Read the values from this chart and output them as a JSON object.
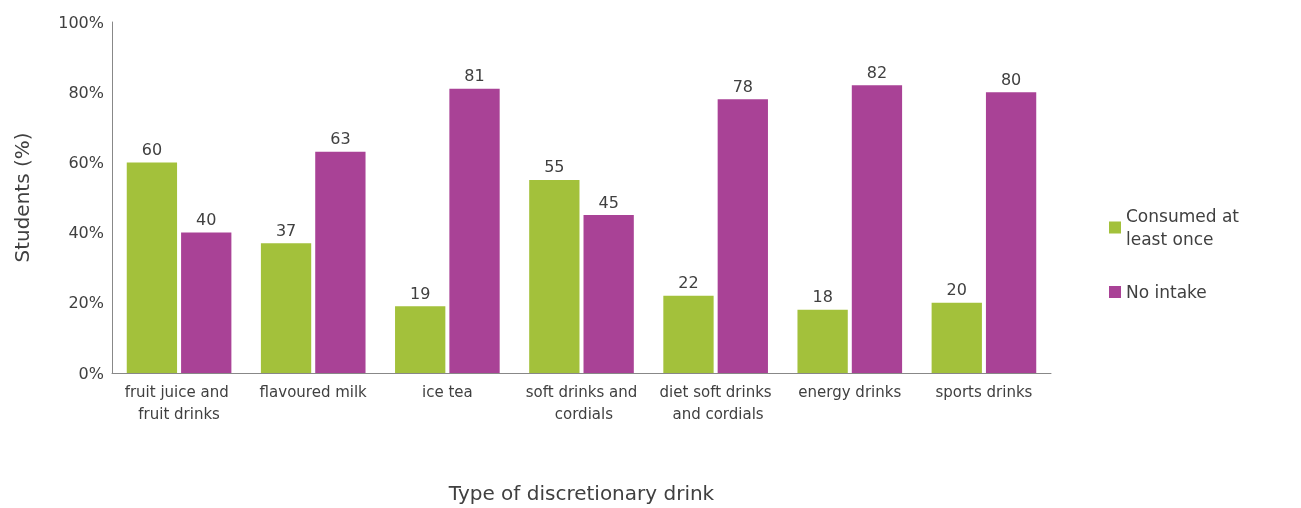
{
  "chart_data": {
    "type": "bar",
    "xlabel": "Type of discretionary drink",
    "ylabel": "Students (%)",
    "categories": [
      "fruit juice and fruit drinks",
      "flavoured milk",
      "ice tea",
      "soft drinks and cordials",
      "diet soft drinks and cordials",
      "energy drinks",
      "sports drinks"
    ],
    "series": [
      {
        "name": "Consumed at least once",
        "color": "#a3c13b",
        "values": [
          60,
          37,
          19,
          55,
          22,
          18,
          20
        ]
      },
      {
        "name": "No intake",
        "color": "#a94296",
        "values": [
          40,
          63,
          81,
          45,
          78,
          82,
          80
        ]
      }
    ],
    "ylim": [
      0,
      100
    ],
    "yticks": [
      {
        "value": 0,
        "label": "0%"
      },
      {
        "value": 20,
        "label": "20%"
      },
      {
        "value": 40,
        "label": "40%"
      },
      {
        "value": 60,
        "label": "60%"
      },
      {
        "value": 80,
        "label": "80%"
      },
      {
        "value": 100,
        "label": "100%"
      }
    ],
    "data_labels": true,
    "legend": "right",
    "grid": false
  }
}
